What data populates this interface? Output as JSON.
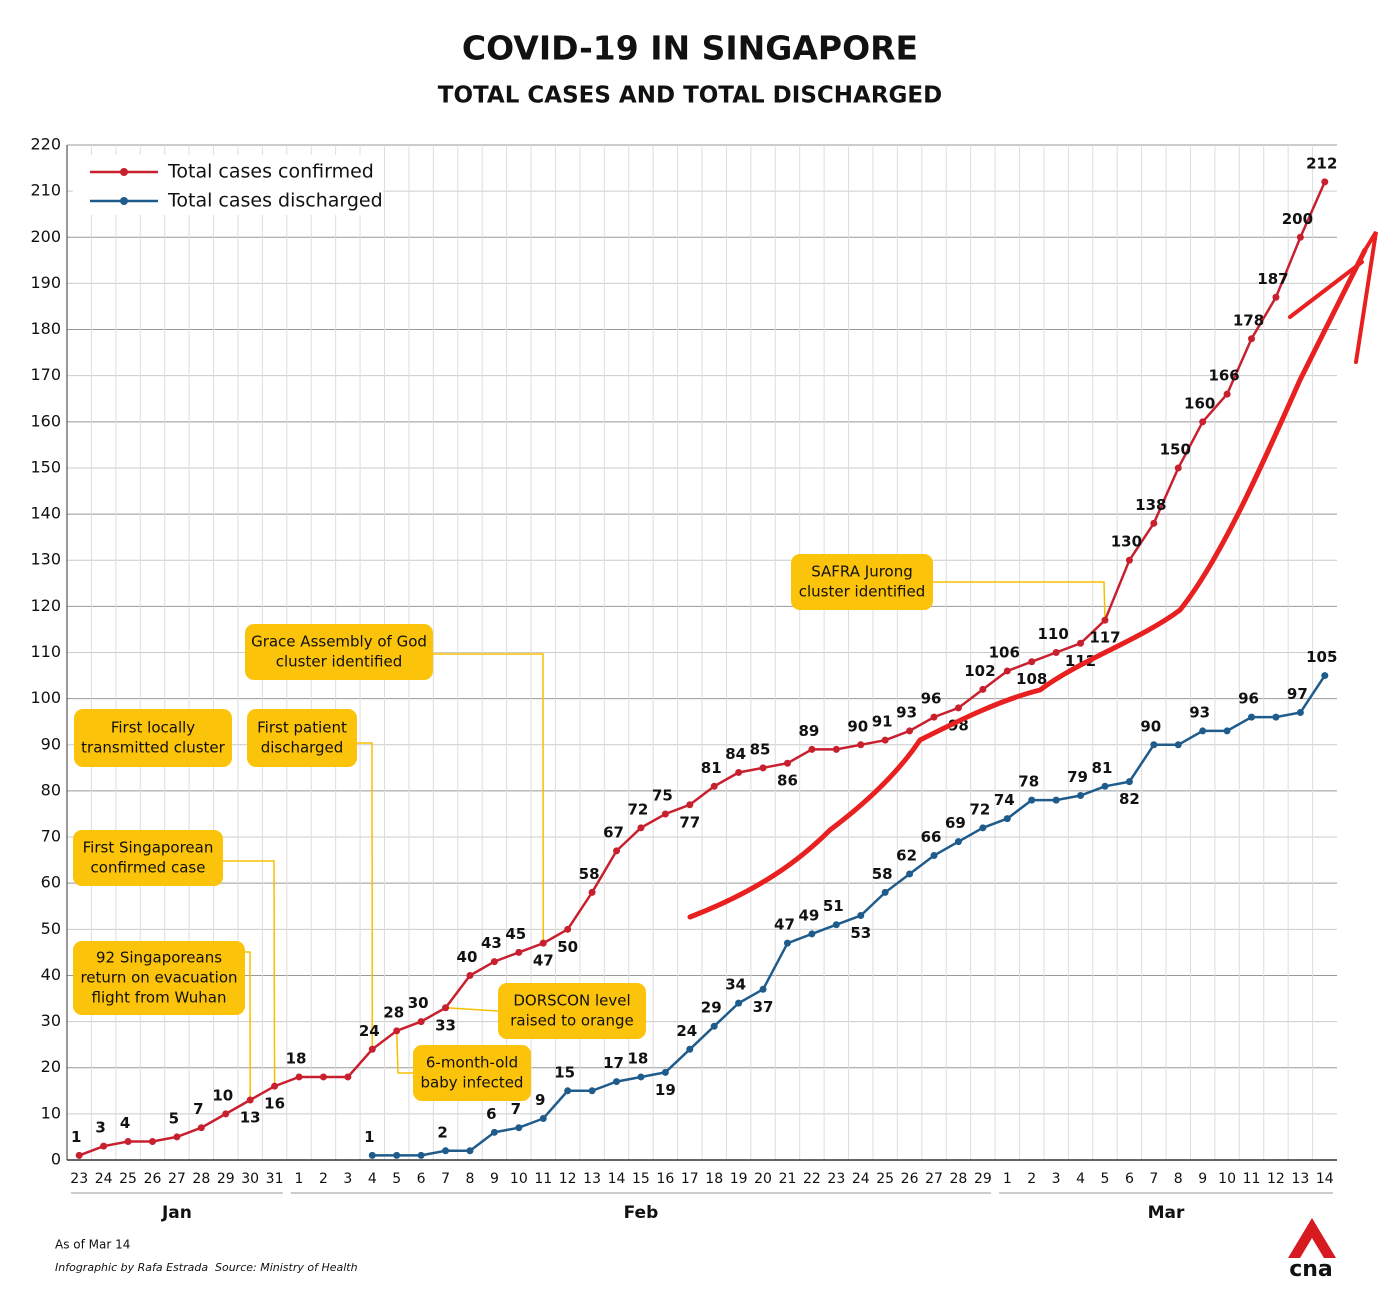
{
  "chart_data": {
    "type": "line",
    "title": "COVID-19 IN SINGAPORE",
    "subtitle": "TOTAL CASES AND TOTAL DISCHARGED",
    "categories": [
      "23",
      "24",
      "25",
      "26",
      "27",
      "28",
      "29",
      "30",
      "31",
      "1",
      "2",
      "3",
      "4",
      "5",
      "6",
      "7",
      "8",
      "9",
      "10",
      "11",
      "12",
      "13",
      "14",
      "15",
      "16",
      "17",
      "18",
      "19",
      "20",
      "21",
      "22",
      "23",
      "24",
      "25",
      "26",
      "27",
      "28",
      "29",
      "1",
      "2",
      "3",
      "4",
      "5",
      "6",
      "7",
      "8",
      "9",
      "10",
      "11",
      "12",
      "13",
      "14"
    ],
    "months": [
      "Jan",
      "Feb",
      "Mar"
    ],
    "series": [
      {
        "name": "Total cases confirmed",
        "color": "#c8202f",
        "values": [
          1,
          3,
          4,
          4,
          5,
          7,
          10,
          13,
          16,
          18,
          18,
          18,
          24,
          28,
          30,
          33,
          40,
          43,
          45,
          47,
          50,
          58,
          67,
          72,
          75,
          77,
          81,
          84,
          85,
          86,
          89,
          89,
          90,
          91,
          93,
          96,
          98,
          102,
          106,
          108,
          110,
          112,
          117,
          130,
          138,
          150,
          160,
          166,
          178,
          187,
          200,
          212
        ]
      },
      {
        "name": "Total cases discharged",
        "color": "#1f5c8c",
        "values": [
          null,
          null,
          null,
          null,
          null,
          null,
          null,
          null,
          null,
          null,
          null,
          null,
          1,
          1,
          1,
          2,
          2,
          6,
          7,
          9,
          15,
          15,
          17,
          18,
          19,
          24,
          29,
          34,
          37,
          47,
          49,
          51,
          53,
          58,
          62,
          66,
          69,
          72,
          74,
          78,
          78,
          79,
          81,
          82,
          90,
          90,
          93,
          93,
          96,
          96,
          97,
          105
        ]
      }
    ],
    "ylim": [
      0,
      220
    ],
    "yticks": [
      0,
      10,
      20,
      30,
      40,
      50,
      60,
      70,
      80,
      90,
      100,
      110,
      120,
      130,
      140,
      150,
      160,
      170,
      180,
      190,
      200,
      210,
      220
    ],
    "grid": true,
    "legend": "top-left",
    "annotations": [
      {
        "lines": [
          "First locally",
          "transmitted cluster"
        ]
      },
      {
        "lines": [
          "First patient",
          "discharged"
        ]
      },
      {
        "lines": [
          "Grace Assembly of God",
          "cluster identified"
        ]
      },
      {
        "lines": [
          "First Singaporean",
          "confirmed case"
        ]
      },
      {
        "lines": [
          "92 Singaporeans",
          "return on evacuation",
          "flight from Wuhan"
        ]
      },
      {
        "lines": [
          "DORSCON level",
          "raised to orange"
        ]
      },
      {
        "lines": [
          "6-month-old",
          "baby infected"
        ]
      },
      {
        "lines": [
          "SAFRA Jurong",
          "cluster identified"
        ]
      }
    ],
    "note": "As of Mar 14",
    "credit": "Infographic by Rafa Estrada",
    "source": "Source: Ministry of Health",
    "logo": "cna"
  }
}
